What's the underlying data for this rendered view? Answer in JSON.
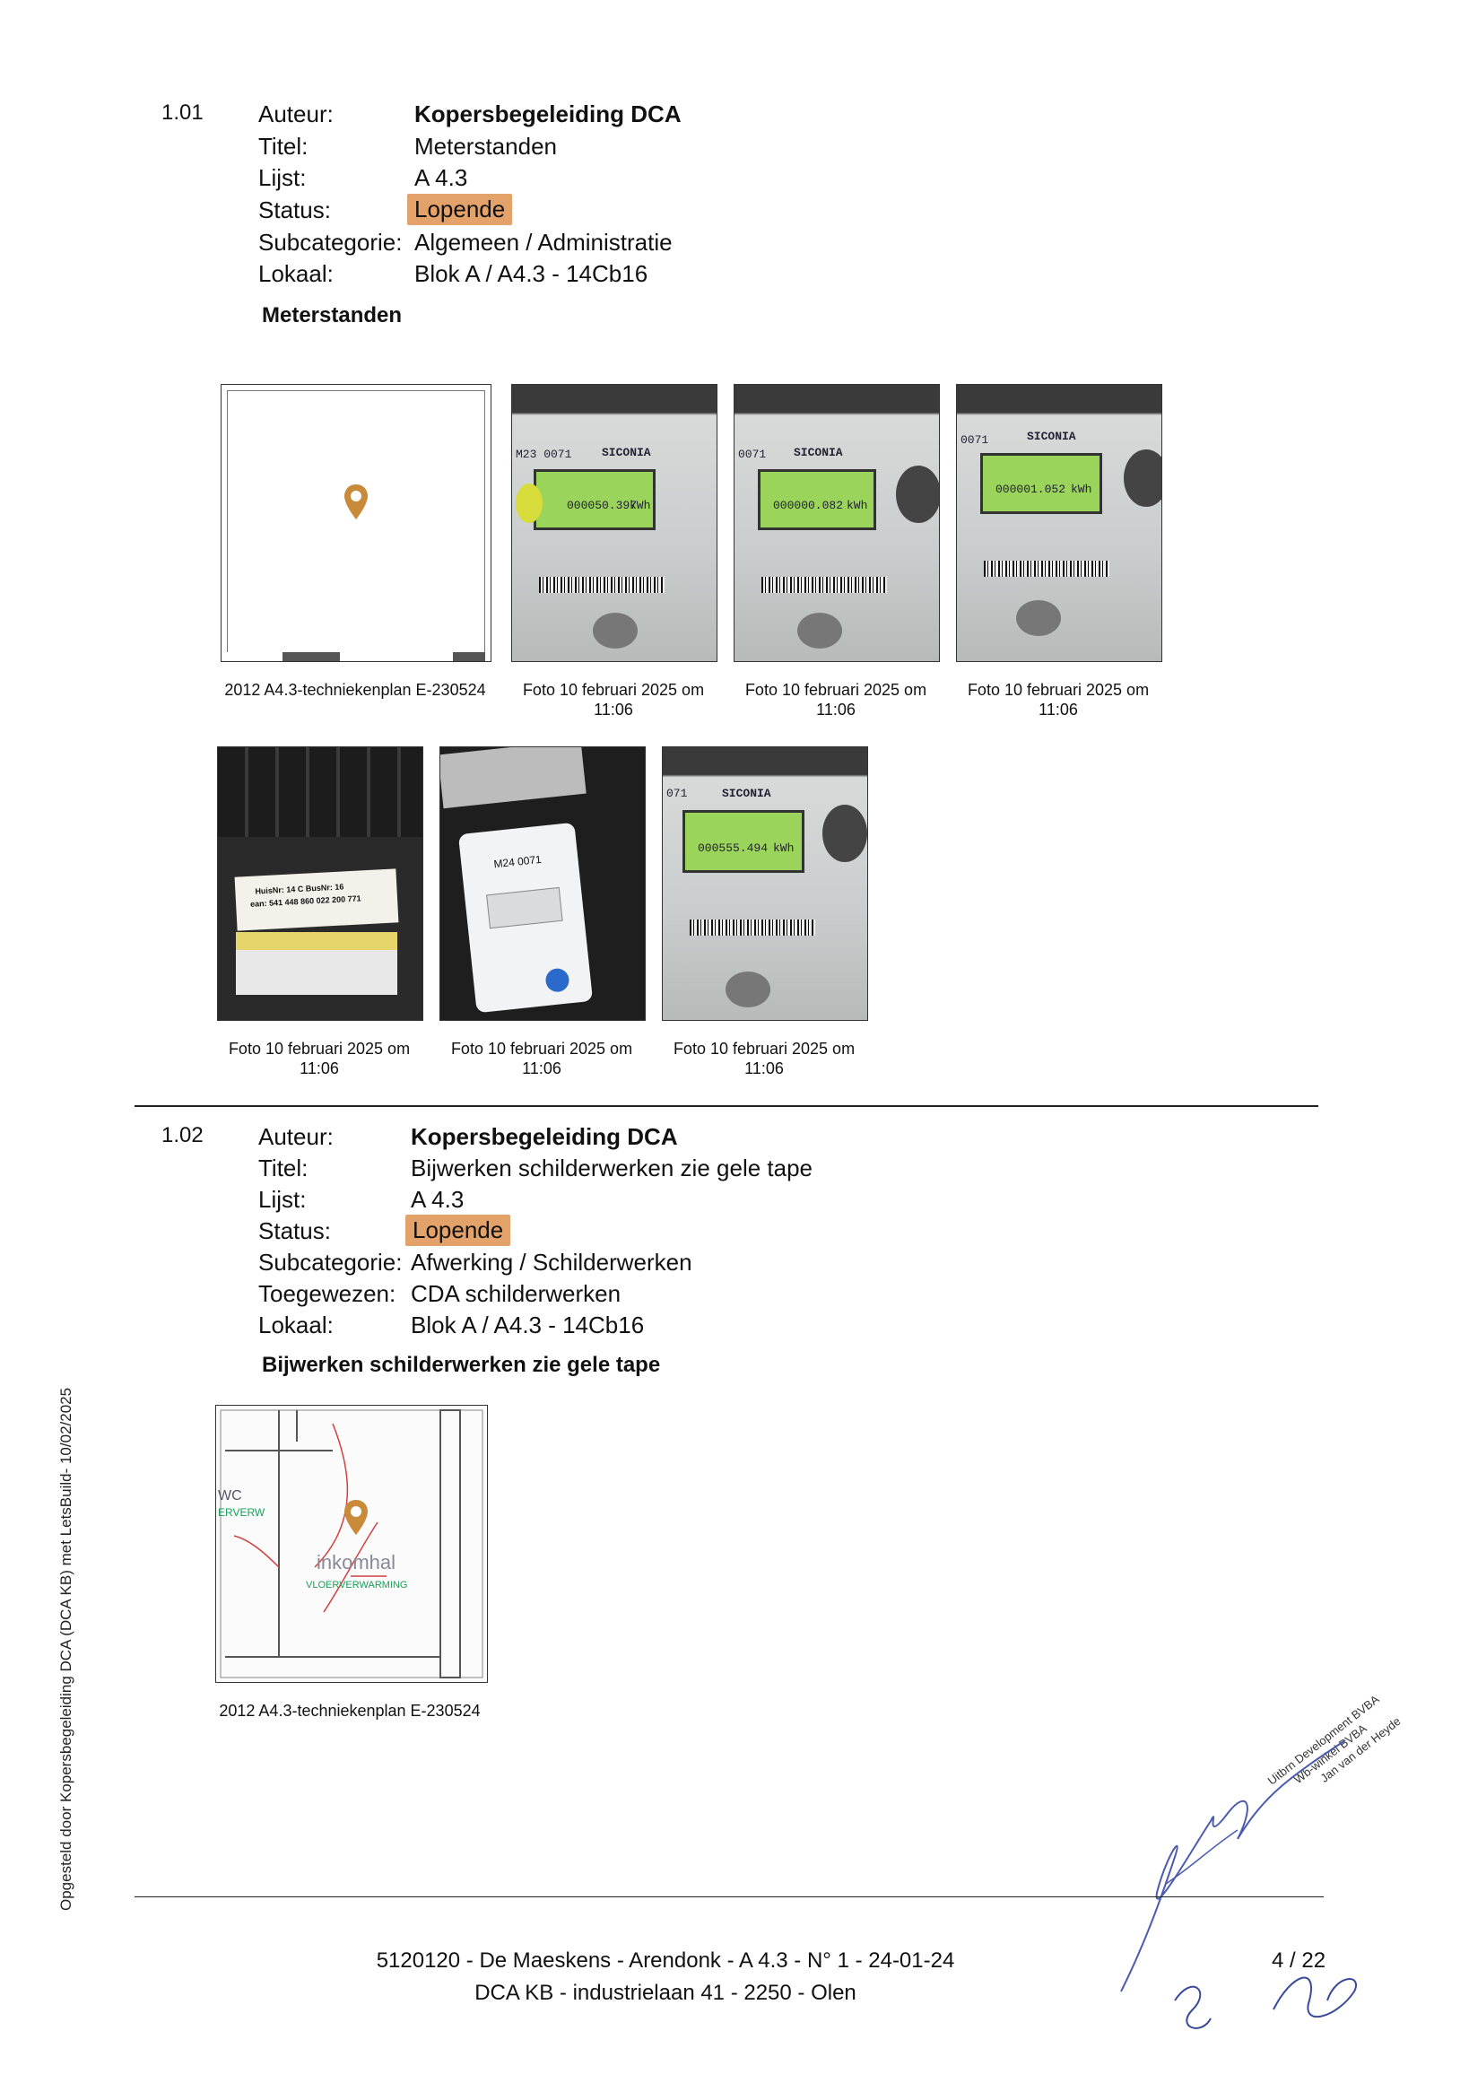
{
  "entries": [
    {
      "number": "1.01",
      "fields": [
        {
          "label": "Auteur:",
          "value": "Kopersbegeleiding DCA"
        },
        {
          "label": "Titel:",
          "value": "Meterstanden"
        },
        {
          "label": "Lijst:",
          "value": "A 4.3"
        },
        {
          "label": "Status:",
          "value": "Lopende"
        },
        {
          "label": "Subcategorie:",
          "value": "Algemeen / Administratie"
        },
        {
          "label": "Lokaal:",
          "value": "Blok A / A4.3 - 14Cb16"
        }
      ],
      "heading": "Meterstanden",
      "thumbnails": [
        {
          "caption": "2012 A4.3-techniekenplan E-230524",
          "icon": "map-pin-icon"
        },
        {
          "caption_line1": "Foto 10 februari 2025 om",
          "caption_line2": "11:06",
          "reading": "000050.397",
          "unit": "kWh",
          "brand": "SICONIA",
          "code": "M23 0071"
        },
        {
          "caption_line1": "Foto 10 februari 2025 om",
          "caption_line2": "11:06",
          "reading": "000000.082",
          "unit": "kWh",
          "brand": "SICONIA",
          "code": "0071"
        },
        {
          "caption_line1": "Foto 10 februari 2025 om",
          "caption_line2": "11:06",
          "reading": "000001.052",
          "unit": "kWh",
          "brand": "SICONIA",
          "code": "0071"
        },
        {
          "caption_line1": "Foto 10 februari 2025 om",
          "caption_line2": "11:06",
          "label_text1": "HuisNr: 14 C BusNr: 16",
          "label_text2": "ean: 541 448 860 022 200 771"
        },
        {
          "caption_line1": "Foto 10 februari 2025 om",
          "caption_line2": "11:06",
          "code": "M24 0071"
        },
        {
          "caption_line1": "Foto 10 februari 2025 om",
          "caption_line2": "11:06",
          "reading": "000555.494",
          "unit": "kWh",
          "brand": "SICONIA",
          "code": "071"
        }
      ]
    },
    {
      "number": "1.02",
      "fields": [
        {
          "label": "Auteur:",
          "value": "Kopersbegeleiding DCA"
        },
        {
          "label": "Titel:",
          "value": "Bijwerken schilderwerken zie gele tape"
        },
        {
          "label": "Lijst:",
          "value": "A 4.3"
        },
        {
          "label": "Status:",
          "value": "Lopende"
        },
        {
          "label": "Subcategorie:",
          "value": "Afwerking / Schilderwerken"
        },
        {
          "label": "Toegewezen:",
          "value": "CDA schilderwerken"
        },
        {
          "label": "Lokaal:",
          "value": "Blok A / A4.3 - 14Cb16"
        }
      ],
      "heading": "Bijwerken schilderwerken zie gele tape",
      "thumbnail": {
        "caption": "2012 A4.3-techniekenplan E-230524",
        "plan_label1": "WC",
        "plan_label2": "ERVERW",
        "plan_label3": "inkomhal",
        "plan_label4": "VLOERVERWARMING"
      }
    }
  ],
  "sidebar_text": "Opgesteld door Kopersbegeleiding DCA (DCA KB) met LetsBuild- 10/02/2025",
  "stamp": {
    "line1": "Uitbrn Development BVBA",
    "line2": "Wb-winkel BVBA",
    "line3": "Jan van der Heyde"
  },
  "footer": {
    "line1": "5120120 - De Maeskens - Arendonk - A 4.3 - N° 1 - 24-01-24",
    "line2": "DCA KB - industrielaan 41 - 2250 - Olen",
    "page": "4 / 22"
  },
  "colors": {
    "status_badge": "#e3a26a",
    "map_pin": "#c98a3a"
  }
}
